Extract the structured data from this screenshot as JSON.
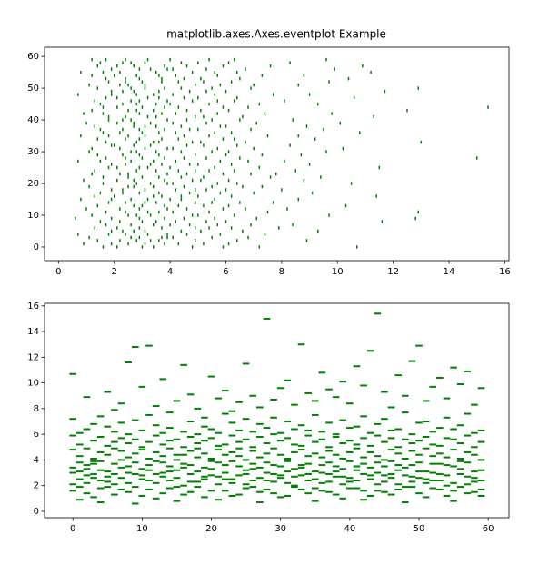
{
  "chart_data": [
    {
      "type": "eventplot",
      "orientation": "horizontal",
      "title": "matplotlib.axes.Axes.eventplot Example",
      "color": "green",
      "xlim": [
        -0.5,
        16.15
      ],
      "ylim": [
        -4.3,
        62.9
      ],
      "xticks": [
        0,
        2,
        4,
        6,
        8,
        10,
        12,
        14,
        16
      ],
      "yticks": [
        0,
        10,
        20,
        30,
        40,
        50,
        60
      ],
      "positions": [
        [
          2.1,
          3.4,
          4.8,
          1.6,
          5.9,
          3.0,
          7.2,
          10.7
        ],
        [
          0.9,
          3.8,
          4.3,
          2.5,
          6.1,
          1.9,
          3.1,
          5.2
        ],
        [
          1.4,
          2.8,
          3.6,
          4.9,
          2.2,
          6.4,
          8.9,
          3.3
        ],
        [
          2.6,
          3.9,
          1.1,
          5.5,
          4.1,
          2.9,
          6.8,
          3.7
        ],
        [
          0.7,
          2.4,
          3.2,
          4.6,
          5.8,
          1.8,
          7.4,
          3.9
        ],
        [
          1.9,
          3.1,
          4.4,
          2.3,
          5.1,
          6.6,
          9.3,
          2.7
        ],
        [
          2.9,
          1.3,
          3.7,
          4.9,
          6.2,
          2.1,
          5.4,
          7.9
        ],
        [
          1.7,
          2.6,
          4.0,
          3.4,
          5.7,
          4.7,
          6.9,
          8.4
        ],
        [
          2.2,
          3.5,
          1.5,
          4.2,
          5.3,
          6.0,
          3.0,
          11.6
        ],
        [
          0.6,
          2.9,
          3.8,
          4.5,
          1.9,
          5.6,
          7.1,
          12.8
        ],
        [
          1.2,
          2.5,
          3.3,
          4.8,
          6.3,
          2.8,
          5.0,
          9.7
        ],
        [
          2.4,
          3.6,
          4.1,
          1.7,
          5.4,
          7.5,
          3.2,
          12.9
        ],
        [
          1.0,
          2.2,
          3.9,
          4.6,
          5.9,
          2.9,
          6.7,
          8.2
        ],
        [
          2.7,
          3.0,
          1.4,
          4.3,
          5.2,
          3.8,
          6.1,
          10.3
        ],
        [
          1.8,
          2.4,
          3.5,
          4.9,
          6.5,
          5.5,
          7.7,
          3.1
        ],
        [
          0.8,
          2.6,
          3.2,
          4.0,
          5.6,
          1.9,
          8.6,
          4.4
        ],
        [
          2.0,
          3.7,
          4.4,
          1.3,
          5.0,
          6.2,
          3.4,
          11.4
        ],
        [
          1.5,
          2.9,
          3.6,
          4.7,
          5.8,
          2.3,
          7.0,
          9.1
        ],
        [
          2.3,
          3.1,
          4.2,
          1.9,
          6.0,
          4.9,
          5.3,
          8.0
        ],
        [
          1.1,
          2.7,
          3.4,
          4.5,
          5.5,
          2.5,
          6.6,
          7.3
        ],
        [
          2.8,
          3.3,
          1.6,
          4.1,
          5.7,
          3.9,
          6.4,
          10.5
        ],
        [
          0.9,
          2.1,
          3.8,
          4.8,
          6.1,
          2.7,
          5.1,
          8.8
        ],
        [
          1.6,
          2.5,
          3.0,
          4.4,
          5.2,
          3.6,
          7.6,
          9.4
        ],
        [
          2.5,
          3.9,
          1.2,
          4.6,
          5.9,
          2.2,
          6.9,
          7.8
        ],
        [
          1.3,
          2.8,
          3.5,
          4.3,
          6.3,
          4.9,
          5.4,
          8.5
        ],
        [
          2.1,
          3.2,
          4.0,
          1.8,
          5.6,
          2.9,
          7.2,
          11.5
        ],
        [
          1.9,
          2.4,
          3.7,
          4.7,
          5.0,
          3.3,
          6.2,
          9.0
        ],
        [
          0.7,
          2.6,
          3.4,
          4.2,
          5.8,
          1.5,
          6.8,
          8.1
        ],
        [
          2.4,
          3.0,
          4.5,
          1.7,
          5.3,
          3.8,
          6.5,
          15.0
        ],
        [
          1.4,
          2.9,
          3.6,
          4.9,
          6.0,
          2.3,
          7.3,
          8.7
        ],
        [
          2.6,
          3.5,
          1.1,
          4.4,
          5.5,
          2.8,
          6.1,
          9.6
        ],
        [
          1.2,
          2.2,
          3.9,
          4.1,
          5.7,
          3.1,
          7.0,
          10.2
        ],
        [
          2.0,
          3.3,
          4.6,
          1.9,
          6.4,
          2.7,
          5.2,
          8.3
        ],
        [
          1.7,
          2.8,
          3.4,
          4.8,
          5.1,
          3.6,
          6.7,
          13.0
        ],
        [
          2.9,
          3.7,
          1.4,
          4.3,
          5.9,
          2.4,
          6.3,
          9.2
        ],
        [
          0.8,
          2.5,
          3.1,
          4.5,
          5.4,
          1.8,
          7.5,
          8.6
        ],
        [
          2.2,
          3.6,
          4.2,
          1.6,
          6.2,
          3.0,
          5.6,
          10.8
        ],
        [
          1.5,
          2.3,
          3.8,
          4.7,
          5.0,
          2.9,
          6.9,
          9.5
        ],
        [
          2.7,
          3.1,
          1.3,
          4.4,
          5.8,
          3.5,
          6.0,
          8.9
        ],
        [
          1.0,
          2.7,
          3.3,
          4.1,
          5.3,
          2.1,
          7.1,
          10.1
        ],
        [
          2.3,
          3.9,
          4.6,
          1.8,
          6.5,
          2.6,
          5.5,
          8.4
        ],
        [
          1.8,
          2.4,
          3.5,
          4.9,
          5.2,
          3.2,
          6.6,
          11.3
        ],
        [
          0.9,
          2.9,
          3.7,
          4.2,
          5.7,
          1.6,
          7.4,
          9.8
        ],
        [
          2.5,
          3.4,
          1.2,
          4.6,
          6.1,
          2.8,
          5.1,
          12.5
        ],
        [
          1.6,
          2.1,
          3.0,
          4.3,
          5.9,
          3.8,
          6.8,
          15.4
        ],
        [
          2.8,
          3.5,
          4.0,
          1.5,
          5.4,
          2.3,
          7.2,
          9.3
        ],
        [
          1.3,
          2.6,
          3.9,
          4.8,
          6.3,
          2.9,
          5.7,
          8.1
        ],
        [
          2.1,
          3.2,
          1.7,
          4.5,
          5.0,
          3.6,
          6.4,
          10.6
        ],
        [
          0.7,
          2.8,
          3.4,
          4.1,
          5.6,
          1.9,
          7.7,
          9.0
        ],
        [
          1.9,
          2.3,
          3.6,
          4.7,
          6.0,
          2.7,
          5.3,
          11.7
        ],
        [
          2.6,
          3.8,
          4.4,
          1.4,
          5.5,
          3.1,
          6.9,
          12.9
        ],
        [
          1.1,
          2.5,
          3.1,
          4.9,
          5.8,
          2.2,
          7.0,
          8.6
        ],
        [
          2.4,
          3.0,
          4.3,
          1.8,
          6.2,
          3.7,
          5.2,
          9.7
        ],
        [
          1.7,
          2.9,
          3.7,
          4.5,
          5.1,
          2.4,
          6.5,
          10.4
        ],
        [
          2.0,
          3.6,
          1.2,
          4.2,
          5.7,
          2.8,
          7.3,
          8.8
        ],
        [
          0.8,
          2.2,
          3.5,
          4.8,
          6.4,
          1.6,
          5.6,
          11.2
        ],
        [
          2.9,
          3.3,
          4.1,
          1.9,
          5.3,
          3.9,
          6.7,
          9.9
        ],
        [
          1.4,
          2.7,
          3.8,
          4.6,
          5.9,
          2.1,
          7.6,
          10.9
        ],
        [
          2.3,
          3.1,
          1.5,
          4.4,
          6.1,
          2.6,
          5.0,
          8.3
        ],
        [
          1.2,
          2.4,
          3.2,
          4.0,
          5.4,
          1.7,
          6.3,
          9.6
        ]
      ]
    },
    {
      "type": "eventplot",
      "orientation": "vertical",
      "color": "green",
      "xlim": [
        -4.1,
        63
      ],
      "ylim": [
        -0.5,
        16.2
      ],
      "xticks": [
        0,
        10,
        20,
        30,
        40,
        50,
        60
      ],
      "yticks": [
        0,
        2,
        4,
        6,
        8,
        10,
        12,
        14,
        16
      ],
      "positions": [
        [
          2.1,
          3.4,
          4.8,
          1.6,
          5.9,
          3.0,
          7.2,
          10.7
        ],
        [
          0.9,
          3.8,
          4.3,
          2.5,
          6.1,
          1.9,
          3.1,
          5.2
        ],
        [
          1.4,
          2.8,
          3.6,
          4.9,
          2.2,
          6.4,
          8.9,
          3.3
        ],
        [
          2.6,
          3.9,
          1.1,
          5.5,
          4.1,
          2.9,
          6.8,
          3.7
        ],
        [
          0.7,
          2.4,
          3.2,
          4.6,
          5.8,
          1.8,
          7.4,
          3.9
        ],
        [
          1.9,
          3.1,
          4.4,
          2.3,
          5.1,
          6.6,
          9.3,
          2.7
        ],
        [
          2.9,
          1.3,
          3.7,
          4.9,
          6.2,
          2.1,
          5.4,
          7.9
        ],
        [
          1.7,
          2.6,
          4.0,
          3.4,
          5.7,
          4.7,
          6.9,
          8.4
        ],
        [
          2.2,
          3.5,
          1.5,
          4.2,
          5.3,
          6.0,
          3.0,
          11.6
        ],
        [
          0.6,
          2.9,
          3.8,
          4.5,
          1.9,
          5.6,
          7.1,
          12.8
        ],
        [
          1.2,
          2.5,
          3.3,
          4.8,
          6.3,
          2.8,
          5.0,
          9.7
        ],
        [
          2.4,
          3.6,
          4.1,
          1.7,
          5.4,
          7.5,
          3.2,
          12.9
        ],
        [
          1.0,
          2.2,
          3.9,
          4.6,
          5.9,
          2.9,
          6.7,
          8.2
        ],
        [
          2.7,
          3.0,
          1.4,
          4.3,
          5.2,
          3.8,
          6.1,
          10.3
        ],
        [
          1.8,
          2.4,
          3.5,
          4.9,
          6.5,
          5.5,
          7.7,
          3.1
        ],
        [
          0.8,
          2.6,
          3.2,
          4.0,
          5.6,
          1.9,
          8.6,
          4.4
        ],
        [
          2.0,
          3.7,
          4.4,
          1.3,
          5.0,
          6.2,
          3.4,
          11.4
        ],
        [
          1.5,
          2.9,
          3.6,
          4.7,
          5.8,
          2.3,
          7.0,
          9.1
        ],
        [
          2.3,
          3.1,
          4.2,
          1.9,
          6.0,
          4.9,
          5.3,
          8.0
        ],
        [
          1.1,
          2.7,
          3.4,
          4.5,
          5.5,
          2.5,
          6.6,
          7.3
        ],
        [
          2.8,
          3.3,
          1.6,
          4.1,
          5.7,
          3.9,
          6.4,
          10.5
        ],
        [
          0.9,
          2.1,
          3.8,
          4.8,
          6.1,
          2.7,
          5.1,
          8.8
        ],
        [
          1.6,
          2.5,
          3.0,
          4.4,
          5.2,
          3.6,
          7.6,
          9.4
        ],
        [
          2.5,
          3.9,
          1.2,
          4.6,
          5.9,
          2.2,
          6.9,
          7.8
        ],
        [
          1.3,
          2.8,
          3.5,
          4.3,
          6.3,
          4.9,
          5.4,
          8.5
        ],
        [
          2.1,
          3.2,
          4.0,
          1.8,
          5.6,
          2.9,
          7.2,
          11.5
        ],
        [
          1.9,
          2.4,
          3.7,
          4.7,
          5.0,
          3.3,
          6.2,
          9.0
        ],
        [
          0.7,
          2.6,
          3.4,
          4.2,
          5.8,
          1.5,
          6.8,
          8.1
        ],
        [
          2.4,
          3.0,
          4.5,
          1.7,
          5.3,
          3.8,
          6.5,
          15.0
        ],
        [
          1.4,
          2.9,
          3.6,
          4.9,
          6.0,
          2.3,
          7.3,
          8.7
        ],
        [
          2.6,
          3.5,
          1.1,
          4.4,
          5.5,
          2.8,
          6.1,
          9.6
        ],
        [
          1.2,
          2.2,
          3.9,
          4.1,
          5.7,
          3.1,
          7.0,
          10.2
        ],
        [
          2.0,
          3.3,
          4.6,
          1.9,
          6.4,
          2.7,
          5.2,
          8.3
        ],
        [
          1.7,
          2.8,
          3.4,
          4.8,
          5.1,
          3.6,
          6.7,
          13.0
        ],
        [
          2.9,
          3.7,
          1.4,
          4.3,
          5.9,
          2.4,
          6.3,
          9.2
        ],
        [
          0.8,
          2.5,
          3.1,
          4.5,
          5.4,
          1.8,
          7.5,
          8.6
        ],
        [
          2.2,
          3.6,
          4.2,
          1.6,
          6.2,
          3.0,
          5.6,
          10.8
        ],
        [
          1.5,
          2.3,
          3.8,
          4.7,
          5.0,
          2.9,
          6.9,
          9.5
        ],
        [
          2.7,
          3.1,
          1.3,
          4.4,
          5.8,
          3.5,
          6.0,
          8.9
        ],
        [
          1.0,
          2.7,
          3.3,
          4.1,
          5.3,
          2.1,
          7.1,
          10.1
        ],
        [
          2.3,
          3.9,
          4.6,
          1.8,
          6.5,
          2.6,
          5.5,
          8.4
        ],
        [
          1.8,
          2.4,
          3.5,
          4.9,
          5.2,
          3.2,
          6.6,
          11.3
        ],
        [
          0.9,
          2.9,
          3.7,
          4.2,
          5.7,
          1.6,
          7.4,
          9.8
        ],
        [
          2.5,
          3.4,
          1.2,
          4.6,
          6.1,
          2.8,
          5.1,
          12.5
        ],
        [
          1.6,
          2.1,
          3.0,
          4.3,
          5.9,
          3.8,
          6.8,
          15.4
        ],
        [
          2.8,
          3.5,
          4.0,
          1.5,
          5.4,
          2.3,
          7.2,
          9.3
        ],
        [
          1.3,
          2.6,
          3.9,
          4.8,
          6.3,
          2.9,
          5.7,
          8.1
        ],
        [
          2.1,
          3.2,
          1.7,
          4.5,
          5.0,
          3.6,
          6.4,
          10.6
        ],
        [
          0.7,
          2.8,
          3.4,
          4.1,
          5.6,
          1.9,
          7.7,
          9.0
        ],
        [
          1.9,
          2.3,
          3.6,
          4.7,
          6.0,
          2.7,
          5.3,
          11.7
        ],
        [
          2.6,
          3.8,
          4.4,
          1.4,
          5.5,
          3.1,
          6.9,
          12.9
        ],
        [
          1.1,
          2.5,
          3.1,
          4.9,
          5.8,
          2.2,
          7.0,
          8.6
        ],
        [
          2.4,
          3.0,
          4.3,
          1.8,
          6.2,
          3.7,
          5.2,
          9.7
        ],
        [
          1.7,
          2.9,
          3.7,
          4.5,
          5.1,
          2.4,
          6.5,
          10.4
        ],
        [
          2.0,
          3.6,
          1.2,
          4.2,
          5.7,
          2.8,
          7.3,
          8.8
        ],
        [
          0.8,
          2.2,
          3.5,
          4.8,
          6.4,
          1.6,
          5.6,
          11.2
        ],
        [
          2.9,
          3.3,
          4.1,
          1.9,
          5.3,
          3.9,
          6.7,
          9.9
        ],
        [
          1.4,
          2.7,
          3.8,
          4.6,
          5.9,
          2.1,
          7.6,
          10.9
        ],
        [
          2.3,
          3.1,
          1.5,
          4.4,
          6.1,
          2.6,
          5.0,
          8.3
        ],
        [
          1.2,
          2.4,
          3.2,
          4.0,
          5.4,
          1.7,
          6.3,
          9.6
        ]
      ]
    }
  ]
}
